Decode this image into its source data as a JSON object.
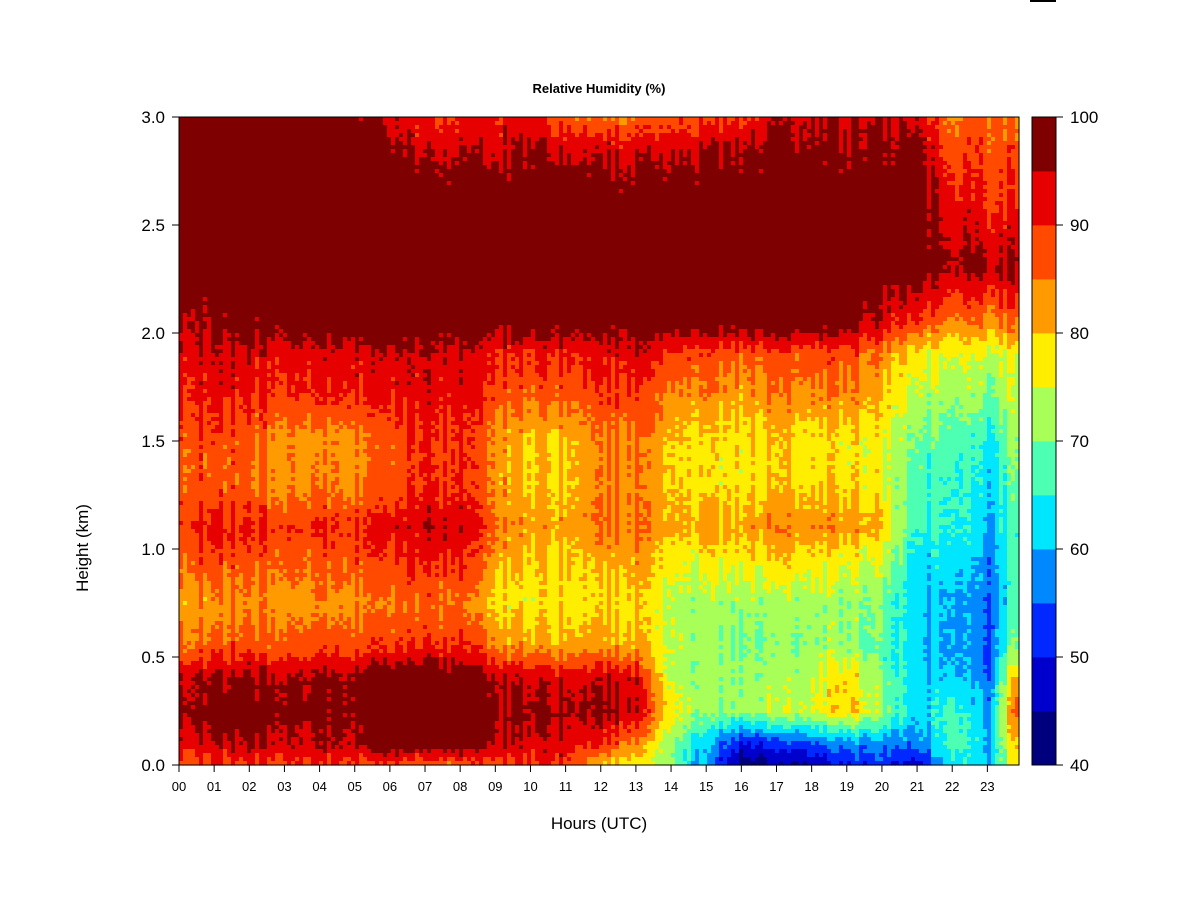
{
  "chart_data": {
    "type": "heatmap",
    "title": "Relative Humidity (%)",
    "xlabel": "Hours (UTC)",
    "ylabel": "Height (km)",
    "xlim": [
      0,
      23.9
    ],
    "ylim": [
      0.0,
      3.0
    ],
    "x_ticks": [
      "00",
      "01",
      "02",
      "03",
      "04",
      "05",
      "06",
      "07",
      "08",
      "09",
      "10",
      "11",
      "12",
      "13",
      "14",
      "15",
      "16",
      "17",
      "18",
      "19",
      "20",
      "21",
      "22",
      "23"
    ],
    "y_ticks": [
      "0.0",
      "0.5",
      "1.0",
      "1.5",
      "2.0",
      "2.5",
      "3.0"
    ],
    "z_unit": "%",
    "colorbar": {
      "levels": [
        40,
        45,
        50,
        55,
        60,
        65,
        70,
        75,
        80,
        85,
        90,
        95,
        100
      ],
      "tick_labels": [
        "40",
        "50",
        "60",
        "70",
        "80",
        "90",
        "100"
      ],
      "colors": [
        "#00007f",
        "#0000cd",
        "#0028ff",
        "#0088ff",
        "#00e6ff",
        "#4dffb3",
        "#a8ff58",
        "#ffee00",
        "#ff9a00",
        "#ff4a00",
        "#e60000",
        "#7f0000"
      ]
    },
    "grid": false,
    "heights_km": [
      0.0,
      0.1,
      0.25,
      0.4,
      0.55,
      0.75,
      1.0,
      1.1,
      1.3,
      1.5,
      1.7,
      1.9,
      2.05,
      2.3,
      2.6,
      2.85,
      3.0
    ],
    "hours": [
      0,
      1,
      2,
      3,
      4,
      5,
      6,
      7,
      8,
      9,
      10,
      11,
      12,
      13,
      14,
      15,
      16,
      17,
      18,
      19,
      20,
      21,
      22,
      23,
      23.9
    ],
    "values": [
      [
        88,
        89,
        89,
        89,
        89,
        89,
        86,
        86,
        86,
        88,
        90,
        90,
        80,
        78,
        70,
        58,
        42,
        43,
        45,
        50,
        52,
        45,
        65,
        60,
        80
      ],
      [
        93,
        95,
        95,
        95,
        95,
        95,
        100,
        100,
        100,
        95,
        93,
        93,
        90,
        85,
        72,
        60,
        50,
        52,
        55,
        58,
        58,
        55,
        68,
        60,
        82
      ],
      [
        97,
        98,
        99,
        98,
        97,
        97,
        100,
        100,
        100,
        97,
        96,
        96,
        96,
        95,
        78,
        70,
        72,
        74,
        75,
        80,
        72,
        60,
        68,
        58,
        90
      ],
      [
        95,
        96,
        96,
        96,
        96,
        96,
        100,
        100,
        100,
        96,
        94,
        94,
        94,
        94,
        74,
        72,
        72,
        72,
        74,
        80,
        70,
        60,
        62,
        55,
        84
      ],
      [
        86,
        87,
        87,
        88,
        88,
        88,
        88,
        90,
        90,
        85,
        82,
        82,
        82,
        82,
        74,
        72,
        70,
        70,
        72,
        72,
        68,
        60,
        60,
        55,
        72
      ],
      [
        82,
        83,
        83,
        83,
        83,
        83,
        84,
        86,
        85,
        78,
        77,
        78,
        78,
        80,
        74,
        72,
        72,
        72,
        72,
        72,
        70,
        60,
        60,
        55,
        68
      ],
      [
        88,
        90,
        88,
        88,
        88,
        88,
        89,
        92,
        92,
        84,
        80,
        80,
        82,
        84,
        78,
        78,
        79,
        80,
        80,
        78,
        76,
        62,
        64,
        58,
        68
      ],
      [
        90,
        92,
        90,
        90,
        90,
        90,
        91,
        94,
        94,
        86,
        82,
        82,
        85,
        86,
        82,
        82,
        82,
        84,
        84,
        84,
        80,
        64,
        66,
        60,
        68
      ],
      [
        87,
        87,
        86,
        84,
        84,
        83,
        86,
        90,
        90,
        84,
        79,
        80,
        84,
        85,
        80,
        78,
        78,
        79,
        79,
        79,
        76,
        66,
        66,
        62,
        70
      ],
      [
        88,
        88,
        86,
        84,
        83,
        83,
        86,
        90,
        90,
        84,
        79,
        80,
        84,
        86,
        80,
        78,
        78,
        79,
        78,
        78,
        76,
        68,
        68,
        64,
        72
      ],
      [
        91,
        92,
        90,
        90,
        90,
        90,
        90,
        92,
        92,
        88,
        86,
        87,
        88,
        90,
        84,
        83,
        82,
        83,
        84,
        84,
        80,
        72,
        72,
        70,
        74
      ],
      [
        93,
        94,
        93,
        93,
        93,
        93,
        93,
        94,
        94,
        91,
        90,
        91,
        92,
        94,
        90,
        88,
        87,
        88,
        88,
        88,
        84,
        76,
        76,
        74,
        76
      ],
      [
        96,
        97,
        98,
        99,
        99,
        99,
        99,
        99,
        99,
        99,
        99,
        99,
        99,
        99,
        99,
        99,
        99,
        99,
        99,
        99,
        93,
        88,
        84,
        84,
        86
      ],
      [
        100,
        100,
        100,
        100,
        100,
        100,
        100,
        100,
        100,
        100,
        100,
        100,
        100,
        100,
        100,
        100,
        100,
        100,
        100,
        100,
        100,
        99,
        96,
        96,
        96
      ],
      [
        100,
        100,
        100,
        100,
        100,
        100,
        100,
        100,
        100,
        100,
        100,
        100,
        100,
        100,
        100,
        100,
        100,
        100,
        100,
        100,
        100,
        99,
        92,
        90,
        90
      ],
      [
        100,
        100,
        100,
        100,
        100,
        99,
        96,
        94,
        94,
        94,
        96,
        95,
        94,
        94,
        94,
        95,
        96,
        97,
        97,
        97,
        97,
        96,
        88,
        88,
        88
      ],
      [
        100,
        100,
        100,
        100,
        100,
        97,
        92,
        90,
        90,
        92,
        92,
        86,
        84,
        86,
        88,
        88,
        90,
        94,
        95,
        95,
        95,
        93,
        84,
        86,
        86
      ]
    ]
  }
}
